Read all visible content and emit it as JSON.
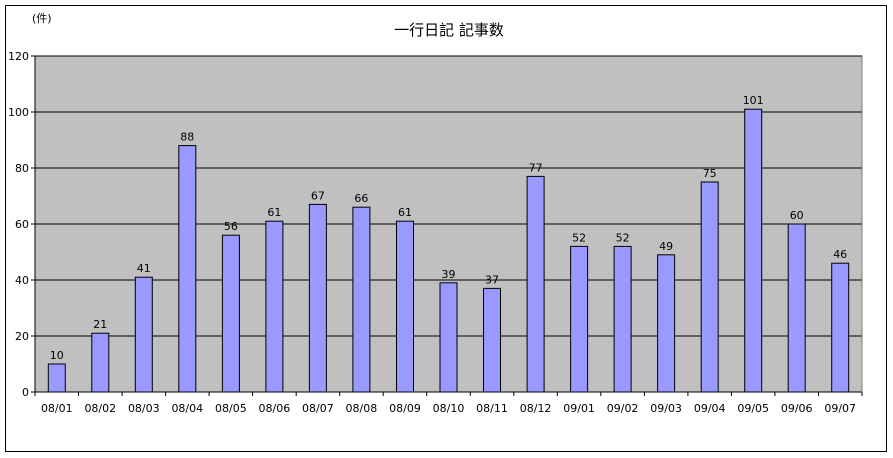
{
  "chart_data": {
    "type": "bar",
    "title": "一行日記 記事数",
    "ylabel": "(件)",
    "xlabel": "",
    "categories": [
      "08/01",
      "08/02",
      "08/03",
      "08/04",
      "08/05",
      "08/06",
      "08/07",
      "08/08",
      "08/09",
      "08/10",
      "08/11",
      "08/12",
      "09/01",
      "09/02",
      "09/03",
      "09/04",
      "09/05",
      "09/06",
      "09/07"
    ],
    "values": [
      10,
      21,
      41,
      88,
      56,
      61,
      67,
      66,
      61,
      39,
      37,
      77,
      52,
      52,
      49,
      75,
      101,
      60,
      46
    ],
    "ylim": [
      0,
      120
    ],
    "yticks": [
      0,
      20,
      40,
      60,
      80,
      100,
      120
    ],
    "grid": true,
    "legend": "none",
    "colors": {
      "bar": "#9999ff",
      "plot_background": "#c0c0c0",
      "gridline": "#000000"
    }
  }
}
